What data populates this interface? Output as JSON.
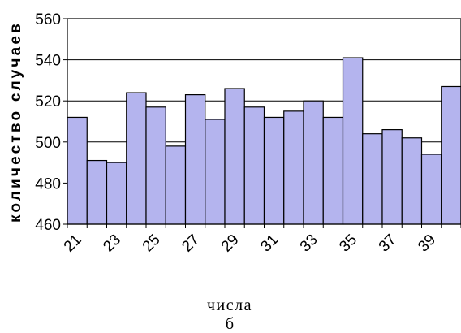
{
  "chart_data": {
    "type": "bar",
    "categories": [
      "21",
      "22",
      "23",
      "24",
      "25",
      "26",
      "27",
      "28",
      "29",
      "30",
      "31",
      "32",
      "33",
      "34",
      "35",
      "36",
      "37",
      "38",
      "39",
      "40"
    ],
    "tick_labels": [
      "21",
      "",
      "23",
      "",
      "25",
      "",
      "27",
      "",
      "29",
      "",
      "31",
      "",
      "33",
      "",
      "35",
      "",
      "37",
      "",
      "39",
      ""
    ],
    "values": [
      512,
      491,
      490,
      524,
      517,
      498,
      523,
      511,
      526,
      517,
      512,
      515,
      520,
      512,
      541,
      504,
      506,
      502,
      494,
      527
    ],
    "ylim": [
      460,
      560
    ],
    "yticks": [
      460,
      480,
      500,
      520,
      540,
      560
    ],
    "xlabel": "числа",
    "ylabel": "количество случаев",
    "caption": "б",
    "grid": true,
    "colors": {
      "bar_fill": "#b4b4ee",
      "bar_stroke": "#000000",
      "grid": "#000000",
      "background": "#ffffff"
    }
  }
}
